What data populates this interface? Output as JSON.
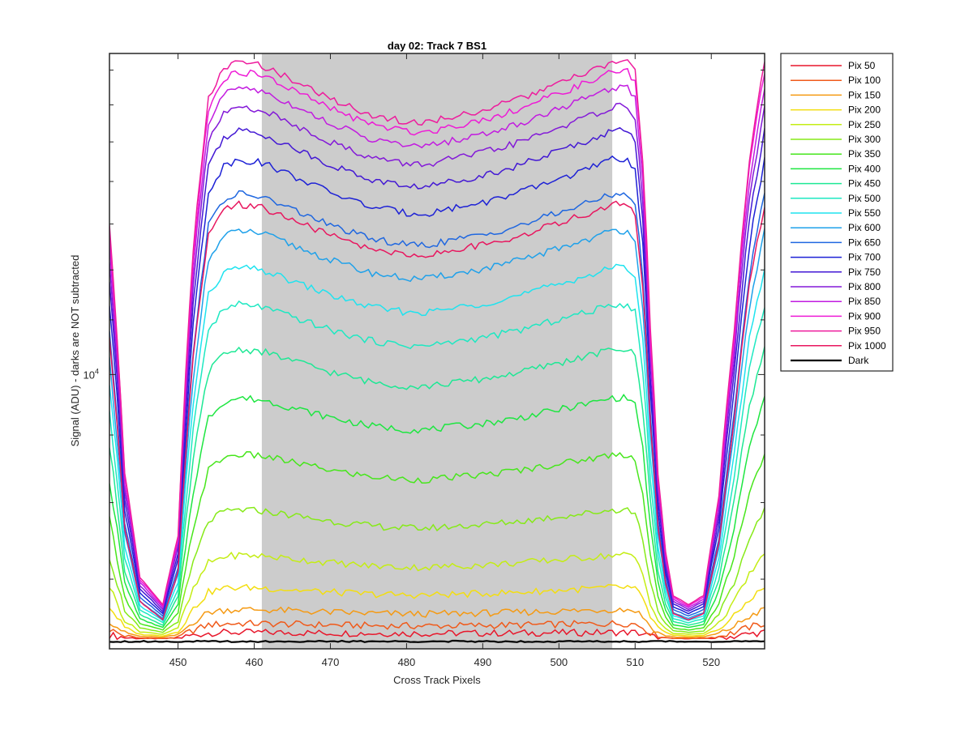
{
  "chart_data": {
    "type": "line",
    "title": "day 02: Track 7  BS1",
    "xlabel": "Cross Track Pixels",
    "ylabel": "Signal (ADU) - darks are NOT subtracted",
    "xlim": [
      441,
      527
    ],
    "x_ticks": [
      450,
      460,
      470,
      480,
      490,
      500,
      510,
      520
    ],
    "x_tick_labels": [
      "450",
      "460",
      "470",
      "480",
      "490",
      "500",
      "510",
      "520"
    ],
    "yscale": "log",
    "ylim": [
      6200,
      17500
    ],
    "y_tick_base": "10",
    "y_tick_exponent": "4",
    "y_tick_value": 10000,
    "grid": false,
    "legend_position": "outside-right",
    "shaded_region": {
      "x": [
        461,
        507
      ],
      "color": "#cccccc"
    },
    "profile_shape": {
      "x": [
        441,
        443,
        445,
        448,
        450,
        452,
        454,
        456,
        458,
        461,
        465,
        470,
        475,
        480,
        483,
        485,
        490,
        495,
        500,
        505,
        507,
        509,
        510,
        511,
        512,
        513,
        514,
        515,
        517,
        519,
        521,
        523,
        525,
        527
      ],
      "rel": [
        0.6,
        0.18,
        0.05,
        0.02,
        0.1,
        0.55,
        0.9,
        0.98,
        1.0,
        0.99,
        0.95,
        0.9,
        0.86,
        0.84,
        0.84,
        0.85,
        0.87,
        0.9,
        0.94,
        0.98,
        1.0,
        1.0,
        0.97,
        0.75,
        0.4,
        0.18,
        0.08,
        0.03,
        0.02,
        0.03,
        0.15,
        0.4,
        0.75,
        1.0
      ]
    },
    "series": [
      {
        "name": "Pix 50",
        "color": "#e8172b",
        "baseline": 6310,
        "peak": 6380
      },
      {
        "name": "Pix 100",
        "color": "#f05a1a",
        "baseline": 6310,
        "peak": 6480
      },
      {
        "name": "Pix 150",
        "color": "#f59a13",
        "baseline": 6320,
        "peak": 6640
      },
      {
        "name": "Pix 200",
        "color": "#f3de10",
        "baseline": 6330,
        "peak": 6900
      },
      {
        "name": "Pix 250",
        "color": "#c4ed14",
        "baseline": 6340,
        "peak": 7300
      },
      {
        "name": "Pix 300",
        "color": "#86ea18",
        "baseline": 6350,
        "peak": 7900
      },
      {
        "name": "Pix 350",
        "color": "#47e61c",
        "baseline": 6360,
        "peak": 8700
      },
      {
        "name": "Pix 400",
        "color": "#1ee641",
        "baseline": 6370,
        "peak": 9600
      },
      {
        "name": "Pix 450",
        "color": "#1ee895",
        "baseline": 6380,
        "peak": 10450
      },
      {
        "name": "Pix 500",
        "color": "#1ee8c2",
        "baseline": 6390,
        "peak": 11300
      },
      {
        "name": "Pix 550",
        "color": "#1ee3ef",
        "baseline": 6400,
        "peak": 12050
      },
      {
        "name": "Pix 600",
        "color": "#1fa1ea",
        "baseline": 6410,
        "peak": 12850
      },
      {
        "name": "Pix 650",
        "color": "#1f67e0",
        "baseline": 6420,
        "peak": 13700
      },
      {
        "name": "Pix 700",
        "color": "#1d21d6",
        "baseline": 6430,
        "peak": 14550
      },
      {
        "name": "Pix 750",
        "color": "#4318d4",
        "baseline": 6440,
        "peak": 15300
      },
      {
        "name": "Pix 800",
        "color": "#8319d8",
        "baseline": 6450,
        "peak": 15950
      },
      {
        "name": "Pix 850",
        "color": "#c21be0",
        "baseline": 6460,
        "peak": 16500
      },
      {
        "name": "Pix 900",
        "color": "#ee1bd6",
        "baseline": 6470,
        "peak": 16950
      },
      {
        "name": "Pix 950",
        "color": "#ee1b9d",
        "baseline": 6480,
        "peak": 17250
      },
      {
        "name": "Pix 1000",
        "color": "#e8175f",
        "baseline": 6380,
        "peak": 13450
      },
      {
        "name": "Dark",
        "color": "#000000",
        "baseline": 6280,
        "peak": 6285,
        "flat": true
      }
    ]
  }
}
